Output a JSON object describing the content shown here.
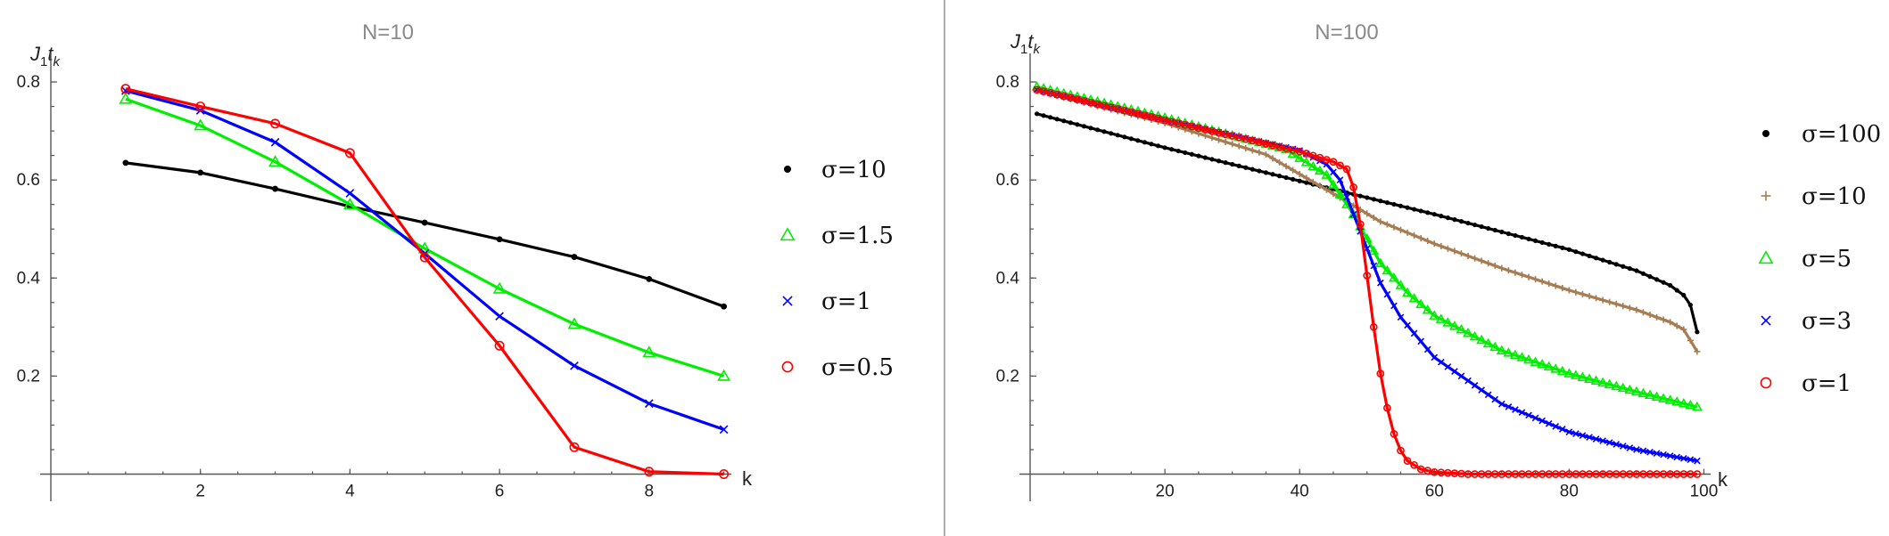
{
  "chart_data": [
    {
      "type": "line",
      "title": "N=10",
      "xlabel": "k",
      "ylabel": "J1tk",
      "ylabel_parts": {
        "main": "J",
        "sub1": "1",
        "mid": "t",
        "sub2": "k"
      },
      "xlim": [
        0,
        9.1
      ],
      "ylim": [
        -0.01,
        0.84
      ],
      "x_ticks": [
        2,
        4,
        6,
        8
      ],
      "y_ticks": [
        0.2,
        0.4,
        0.6,
        0.8
      ],
      "y_tick_labels": [
        "0.2",
        "0.4",
        "0.6",
        "0.8"
      ],
      "grid": false,
      "legend_position": "right",
      "x": [
        1,
        2,
        3,
        4,
        5,
        6,
        7,
        8,
        9
      ],
      "series": [
        {
          "name": "σ=10",
          "marker": "dot",
          "color": "#000000",
          "values": [
            0.635,
            0.615,
            0.582,
            0.546,
            0.513,
            0.479,
            0.443,
            0.398,
            0.342
          ]
        },
        {
          "name": "σ=1.5",
          "marker": "triangle",
          "color": "#00ee00",
          "values": [
            0.765,
            0.711,
            0.637,
            0.55,
            0.46,
            0.378,
            0.306,
            0.248,
            0.2
          ]
        },
        {
          "name": "σ=1",
          "marker": "cross",
          "color": "#0000ff",
          "values": [
            0.782,
            0.742,
            0.677,
            0.573,
            0.45,
            0.322,
            0.221,
            0.144,
            0.091
          ]
        },
        {
          "name": "σ=0.5",
          "marker": "circle",
          "color": "#ff0000",
          "values": [
            0.786,
            0.75,
            0.715,
            0.655,
            0.442,
            0.262,
            0.055,
            0.005,
            0.0
          ]
        }
      ]
    },
    {
      "type": "line",
      "title": "N=100",
      "xlabel": "k",
      "ylabel": "J1tk",
      "ylabel_parts": {
        "main": "J",
        "sub1": "1",
        "mid": "t",
        "sub2": "k"
      },
      "xlim": [
        0,
        101
      ],
      "ylim": [
        -0.01,
        0.84
      ],
      "x_ticks": [
        20,
        40,
        60,
        80,
        100
      ],
      "y_ticks": [
        0.2,
        0.4,
        0.6,
        0.8
      ],
      "y_tick_labels": [
        "0.2",
        "0.4",
        "0.6",
        "0.8"
      ],
      "grid": false,
      "legend_position": "right",
      "x_range": [
        1,
        99
      ],
      "series": [
        {
          "name": "σ=100",
          "marker": "dot",
          "color": "#000000",
          "key_points": [
            [
              1,
              0.735
            ],
            [
              20,
              0.666
            ],
            [
              40,
              0.598
            ],
            [
              60,
              0.53
            ],
            [
              80,
              0.458
            ],
            [
              90,
              0.415
            ],
            [
              95,
              0.385
            ],
            [
              97,
              0.365
            ],
            [
              98,
              0.345
            ],
            [
              99,
              0.29
            ]
          ]
        },
        {
          "name": "σ=10",
          "marker": "plus",
          "color": "#a67c52",
          "key_points": [
            [
              1,
              0.782
            ],
            [
              20,
              0.716
            ],
            [
              35,
              0.652
            ],
            [
              45,
              0.572
            ],
            [
              52,
              0.515
            ],
            [
              60,
              0.47
            ],
            [
              70,
              0.42
            ],
            [
              80,
              0.375
            ],
            [
              90,
              0.335
            ],
            [
              95,
              0.31
            ],
            [
              97,
              0.295
            ],
            [
              99,
              0.25
            ]
          ]
        },
        {
          "name": "σ=5",
          "marker": "triangle",
          "color": "#00ee00",
          "key_points": [
            [
              1,
              0.79
            ],
            [
              20,
              0.727
            ],
            [
              38,
              0.662
            ],
            [
              44,
              0.61
            ],
            [
              48,
              0.53
            ],
            [
              52,
              0.43
            ],
            [
              56,
              0.37
            ],
            [
              60,
              0.323
            ],
            [
              70,
              0.252
            ],
            [
              80,
              0.205
            ],
            [
              90,
              0.168
            ],
            [
              99,
              0.137
            ]
          ]
        },
        {
          "name": "σ=3",
          "marker": "cross",
          "color": "#0000ff",
          "key_points": [
            [
              1,
              0.784
            ],
            [
              20,
              0.722
            ],
            [
              40,
              0.66
            ],
            [
              44,
              0.632
            ],
            [
              46,
              0.6
            ],
            [
              48,
              0.53
            ],
            [
              50,
              0.46
            ],
            [
              52,
              0.39
            ],
            [
              55,
              0.32
            ],
            [
              60,
              0.238
            ],
            [
              70,
              0.143
            ],
            [
              80,
              0.086
            ],
            [
              90,
              0.05
            ],
            [
              99,
              0.027
            ]
          ]
        },
        {
          "name": "σ=1",
          "marker": "circle",
          "color": "#ff0000",
          "key_points": [
            [
              1,
              0.784
            ],
            [
              20,
              0.722
            ],
            [
              40,
              0.658
            ],
            [
              45,
              0.637
            ],
            [
              47,
              0.622
            ],
            [
              48,
              0.585
            ],
            [
              49,
              0.51
            ],
            [
              50,
              0.405
            ],
            [
              51,
              0.3
            ],
            [
              52,
              0.205
            ],
            [
              53,
              0.135
            ],
            [
              54,
              0.082
            ],
            [
              55,
              0.048
            ],
            [
              56,
              0.027
            ],
            [
              58,
              0.01
            ],
            [
              60,
              0.004
            ],
            [
              65,
              0.0
            ],
            [
              99,
              0.0
            ]
          ]
        }
      ]
    }
  ]
}
